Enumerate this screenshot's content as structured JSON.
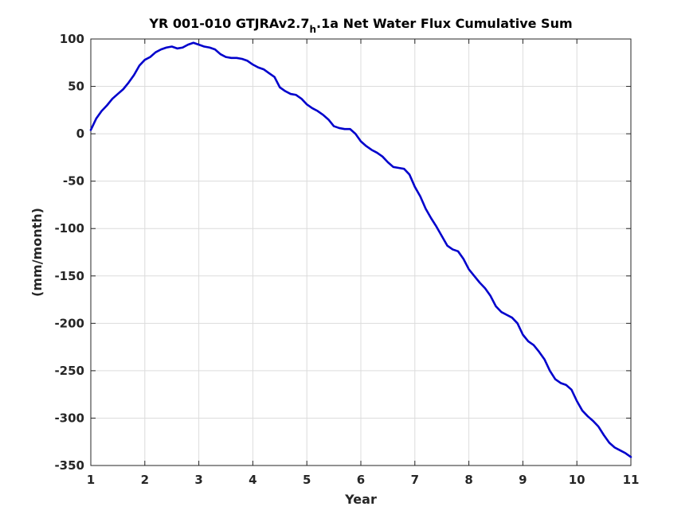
{
  "chart_data": {
    "type": "line",
    "title": {
      "prefix": "YR 001-010 GTJRAv2.7",
      "subscript": "h",
      "suffix": ".1a Net Water Flux Cumulative Sum"
    },
    "xlabel": "Year",
    "ylabel": "(mm/month)",
    "xlim": [
      1,
      11
    ],
    "ylim": [
      -350,
      100
    ],
    "xticks": [
      1,
      2,
      3,
      4,
      5,
      6,
      7,
      8,
      9,
      10,
      11
    ],
    "yticks": [
      100,
      50,
      0,
      -50,
      -100,
      -150,
      -200,
      -250,
      -300,
      -350
    ],
    "grid": true,
    "series": [
      {
        "color": "#0000cc",
        "x": [
          1.0,
          1.1,
          1.2,
          1.3,
          1.4,
          1.5,
          1.6,
          1.7,
          1.8,
          1.9,
          2.0,
          2.1,
          2.2,
          2.3,
          2.4,
          2.5,
          2.6,
          2.7,
          2.8,
          2.9,
          3.0,
          3.1,
          3.2,
          3.3,
          3.4,
          3.5,
          3.6,
          3.7,
          3.8,
          3.9,
          4.0,
          4.1,
          4.2,
          4.3,
          4.4,
          4.5,
          4.6,
          4.7,
          4.8,
          4.9,
          5.0,
          5.1,
          5.2,
          5.3,
          5.4,
          5.5,
          5.6,
          5.7,
          5.8,
          5.9,
          6.0,
          6.1,
          6.2,
          6.3,
          6.4,
          6.5,
          6.6,
          6.7,
          6.8,
          6.9,
          7.0,
          7.1,
          7.2,
          7.3,
          7.4,
          7.5,
          7.6,
          7.7,
          7.8,
          7.9,
          8.0,
          8.1,
          8.2,
          8.3,
          8.4,
          8.5,
          8.6,
          8.7,
          8.8,
          8.9,
          9.0,
          9.1,
          9.2,
          9.3,
          9.4,
          9.5,
          9.6,
          9.7,
          9.8,
          9.9,
          10.0,
          10.1,
          10.2,
          10.3,
          10.4,
          10.5,
          10.6,
          10.7,
          10.8,
          10.9,
          11.0
        ],
        "y": [
          4,
          16,
          24,
          30,
          37,
          42,
          47,
          54,
          62,
          72,
          78,
          81,
          86,
          89,
          91,
          92,
          90,
          91,
          94,
          96,
          94,
          92,
          91,
          89,
          84,
          81,
          80,
          80,
          79,
          77,
          73,
          70,
          68,
          64,
          60,
          49,
          45,
          42,
          41,
          37,
          31,
          27,
          24,
          20,
          15,
          8,
          6,
          5,
          5,
          0,
          -8,
          -13,
          -17,
          -20,
          -24,
          -30,
          -35,
          -36,
          -37,
          -43,
          -56,
          -66,
          -79,
          -89,
          -98,
          -108,
          -118,
          -122,
          -124,
          -132,
          -143,
          -150,
          -157,
          -163,
          -171,
          -182,
          -188,
          -191,
          -194,
          -200,
          -212,
          -219,
          -223,
          -230,
          -238,
          -250,
          -259,
          -263,
          -265,
          -270,
          -282,
          -292,
          -298,
          -303,
          -309,
          -318,
          -326,
          -331,
          -334,
          -337,
          -341
        ]
      }
    ]
  }
}
